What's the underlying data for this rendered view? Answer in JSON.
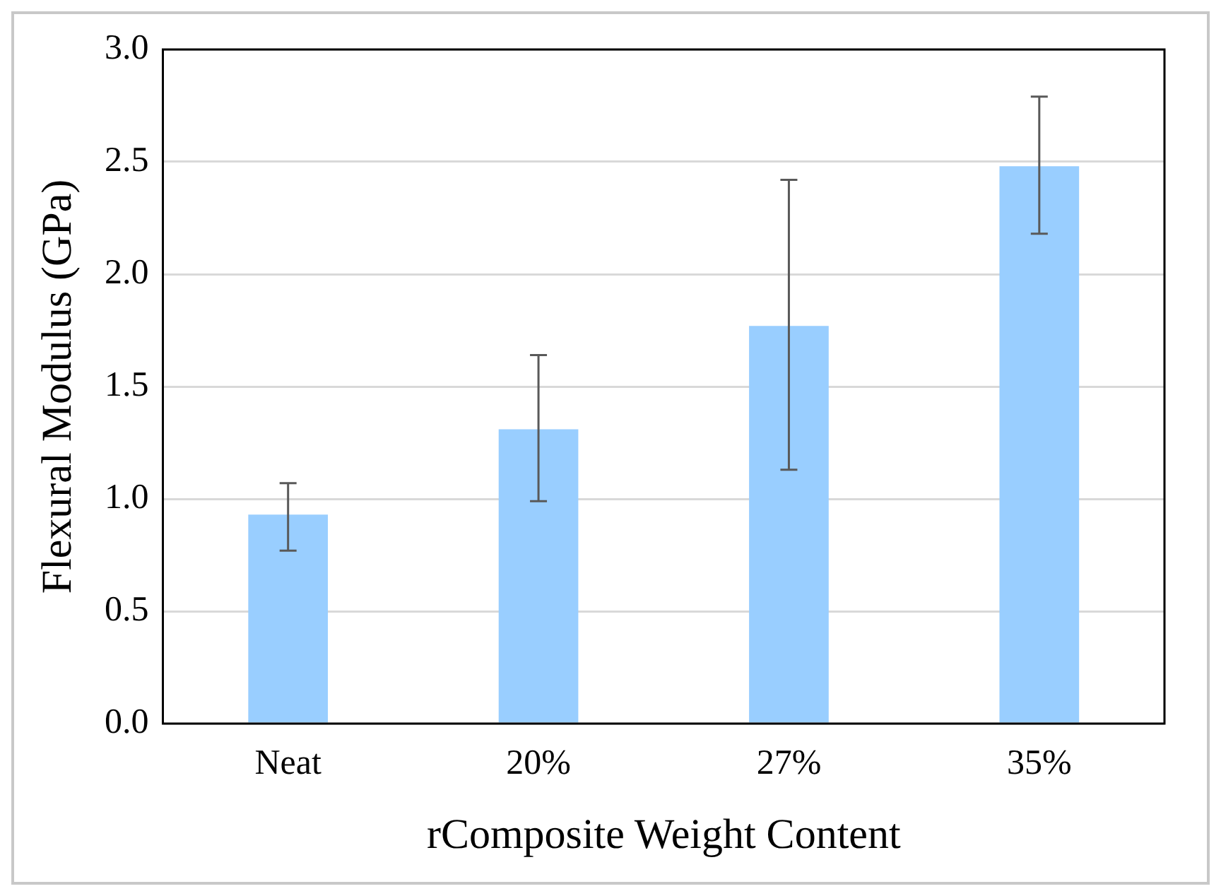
{
  "chart_data": {
    "type": "bar",
    "xlabel": "rComposite Weight Content",
    "ylabel": "Flexural Modulus (GPa)",
    "categories": [
      "Neat",
      "20%",
      "27%",
      "35%"
    ],
    "values": [
      0.93,
      1.31,
      1.77,
      2.48
    ],
    "errors": [
      [
        0.77,
        1.07
      ],
      [
        0.99,
        1.64
      ],
      [
        1.13,
        2.42
      ],
      [
        2.18,
        2.79
      ]
    ],
    "color": "#99ceff",
    "ylim": [
      0,
      3
    ],
    "yticks": [
      {
        "value": 0,
        "label": "0.0"
      },
      {
        "value": 0.5,
        "label": "0.5"
      },
      {
        "value": 1,
        "label": "1.0"
      },
      {
        "value": 1.5,
        "label": "1.5"
      },
      {
        "value": 2,
        "label": "2.0"
      },
      {
        "value": 2.5,
        "label": "2.5"
      },
      {
        "value": 3,
        "label": "3.0"
      }
    ],
    "grid": "y",
    "legend": false
  }
}
